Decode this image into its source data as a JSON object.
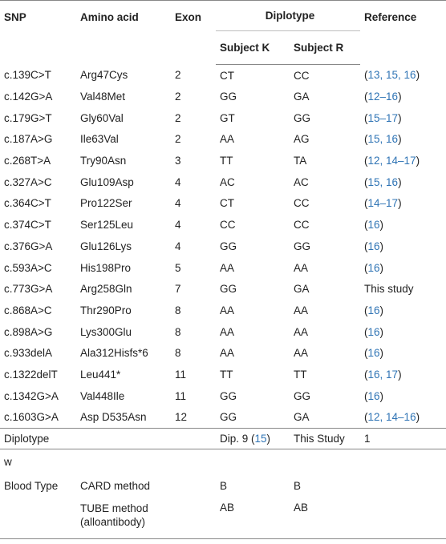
{
  "headers": {
    "snp": "SNP",
    "amino_acid": "Amino acid",
    "exon": "Exon",
    "diplotype": "Diplotype",
    "subject_k": "Subject K",
    "subject_r": "Subject R",
    "reference": "Reference"
  },
  "rows": [
    {
      "snp": "c.139C>T",
      "aa": "Arg47Cys",
      "exon": "2",
      "k": "CT",
      "r": "CC",
      "ref": "13, 15, 16"
    },
    {
      "snp": "c.142G>A",
      "aa": "Val48Met",
      "exon": "2",
      "k": "GG",
      "r": "GA",
      "ref": "12–16"
    },
    {
      "snp": "c.179G>T",
      "aa": "Gly60Val",
      "exon": "2",
      "k": "GT",
      "r": "GG",
      "ref": "15–17"
    },
    {
      "snp": "c.187A>G",
      "aa": "Ile63Val",
      "exon": "2",
      "k": "AA",
      "r": "AG",
      "ref": "15, 16"
    },
    {
      "snp": "c.268T>A",
      "aa": "Try90Asn",
      "exon": "3",
      "k": "TT",
      "r": "TA",
      "ref": "12, 14–17"
    },
    {
      "snp": "c.327A>C",
      "aa": "Glu109Asp",
      "exon": "4",
      "k": "AC",
      "r": "AC",
      "ref": "15, 16"
    },
    {
      "snp": "c.364C>T",
      "aa": "Pro122Ser",
      "exon": "4",
      "k": "CT",
      "r": "CC",
      "ref": "14–17"
    },
    {
      "snp": "c.374C>T",
      "aa": "Ser125Leu",
      "exon": "4",
      "k": "CC",
      "r": "CC",
      "ref": "16"
    },
    {
      "snp": "c.376G>A",
      "aa": "Glu126Lys",
      "exon": "4",
      "k": "GG",
      "r": "GG",
      "ref": "16"
    },
    {
      "snp": "c.593A>C",
      "aa": "His198Pro",
      "exon": "5",
      "k": "AA",
      "r": "AA",
      "ref": "16"
    },
    {
      "snp": "c.773G>A",
      "aa": "Arg258Gln",
      "exon": "7",
      "k": "GG",
      "r": "GA",
      "ref_plain": "This study"
    },
    {
      "snp": "c.868A>C",
      "aa": "Thr290Pro",
      "exon": "8",
      "k": "AA",
      "r": "AA",
      "ref": "16"
    },
    {
      "snp": "c.898A>G",
      "aa": "Lys300Glu",
      "exon": "8",
      "k": "AA",
      "r": "AA",
      "ref": "16"
    },
    {
      "snp": "c.933delA",
      "aa": "Ala312Hisfs*6",
      "exon": "8",
      "k": "AA",
      "r": "AA",
      "ref": "16"
    },
    {
      "snp": "c.1322delT",
      "aa": "Leu441*",
      "exon": "11",
      "k": "TT",
      "r": "TT",
      "ref": "16, 17"
    },
    {
      "snp": "c.1342G>A",
      "aa": "Val448Ile",
      "exon": "11",
      "k": "GG",
      "r": "GG",
      "ref": "16"
    },
    {
      "snp": "c.1603G>A",
      "aa": "Asp D535Asn",
      "exon": "12",
      "k": "GG",
      "r": "GA",
      "ref": "12, 14–16"
    }
  ],
  "diplotype_row": {
    "label": "Diplotype",
    "k_prefix": "Dip. 9 (",
    "k_ref": "15",
    "k_suffix": ")",
    "r": "This Study",
    "ref": "1"
  },
  "w_row": {
    "label": "w"
  },
  "blood_type": {
    "label": "Blood Type",
    "card_method": "CARD method",
    "card_k": "B",
    "card_r": "B",
    "tube_method": "TUBE method (alloantibody)",
    "tube_k": "AB",
    "tube_r": "AB"
  },
  "colors": {
    "reference_link": "#2f74b5",
    "rule": "#888888"
  }
}
